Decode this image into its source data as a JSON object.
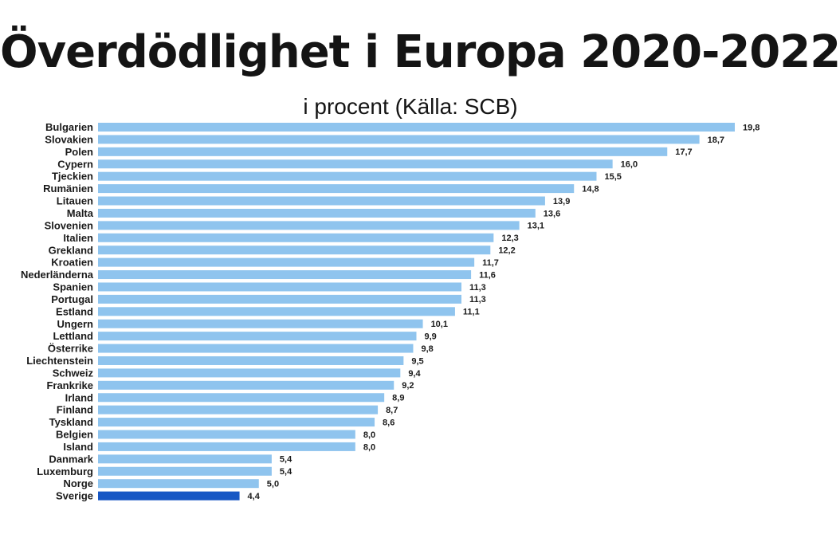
{
  "chart_data": {
    "type": "bar",
    "orientation": "horizontal",
    "title": "Överdödlighet i Europa 2020-2022",
    "subtitle": "i procent  (Källa: SCB)",
    "categories": [
      "Bulgarien",
      "Slovakien",
      "Polen",
      "Cypern",
      "Tjeckien",
      "Rumänien",
      "Litauen",
      "Malta",
      "Slovenien",
      "Italien",
      "Grekland",
      "Kroatien",
      "Nederländerna",
      "Spanien",
      "Portugal",
      "Estland",
      "Ungern",
      "Lettland",
      "Österrike",
      "Liechtenstein",
      "Schweiz",
      "Frankrike",
      "Irland",
      "Finland",
      "Tyskland",
      "Belgien",
      "Island",
      "Danmark",
      "Luxemburg",
      "Norge",
      "Sverige"
    ],
    "values": [
      19.8,
      18.7,
      17.7,
      16.0,
      15.5,
      14.8,
      13.9,
      13.6,
      13.1,
      12.3,
      12.2,
      11.7,
      11.6,
      11.3,
      11.3,
      11.1,
      10.1,
      9.9,
      9.8,
      9.5,
      9.4,
      9.2,
      8.9,
      8.7,
      8.6,
      8.0,
      8.0,
      5.4,
      5.4,
      5.0,
      4.4
    ],
    "value_labels": [
      "19,8",
      "18,7",
      "17,7",
      "16,0",
      "15,5",
      "14,8",
      "13,9",
      "13,6",
      "13,1",
      "12,3",
      "12,2",
      "11,7",
      "11,6",
      "11,3",
      "11,3",
      "11,1",
      "10,1",
      "9,9",
      "9,8",
      "9,5",
      "9,4",
      "9,2",
      "8,9",
      "8,7",
      "8,6",
      "8,0",
      "8,0",
      "5,4",
      "5,4",
      "5,0",
      "4,4"
    ],
    "highlight": "Sverige",
    "colors": {
      "bar": "#8fc4ee",
      "highlight": "#1757c4"
    },
    "xlim": [
      0,
      19.8
    ],
    "grid": false,
    "legend": "none"
  }
}
